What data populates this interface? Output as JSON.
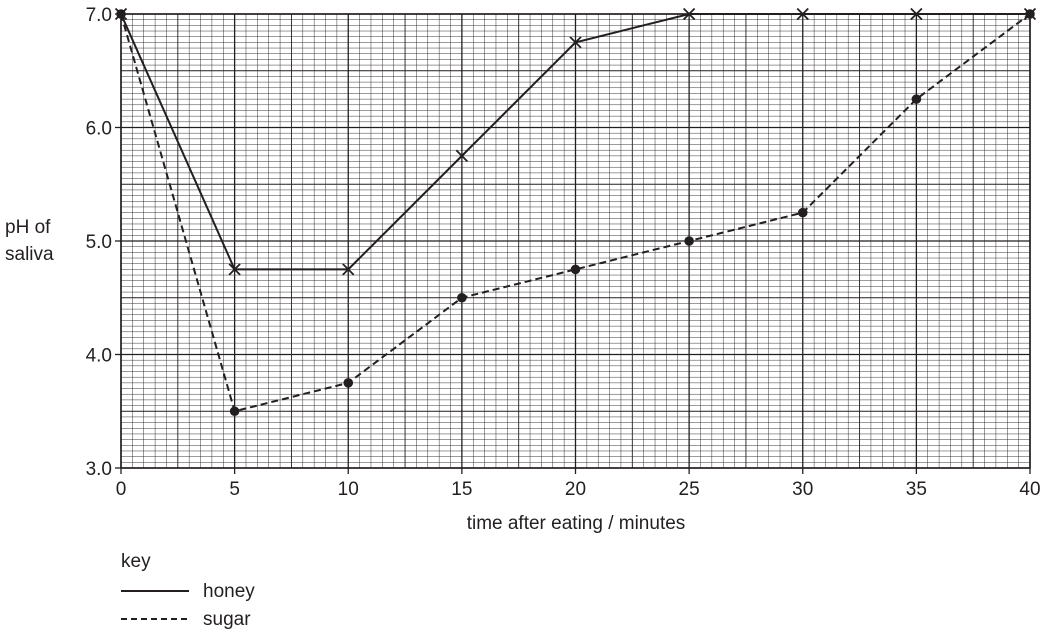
{
  "chart_data": {
    "type": "line",
    "xlabel": "time after eating / minutes",
    "ylabel": [
      "pH of",
      "saliva"
    ],
    "xlim": [
      0,
      40
    ],
    "ylim": [
      3.0,
      7.0
    ],
    "x_ticks": [
      "0",
      "5",
      "10",
      "15",
      "20",
      "25",
      "30",
      "35",
      "40"
    ],
    "y_ticks": [
      "3.0",
      "4.0",
      "5.0",
      "6.0",
      "7.0"
    ],
    "grid": true,
    "x": [
      0,
      5,
      10,
      15,
      20,
      25,
      30,
      35,
      40
    ],
    "series": [
      {
        "name": "honey",
        "style": "solid",
        "marker": "cross",
        "values": [
          7.0,
          4.75,
          4.75,
          5.75,
          6.75,
          7.0,
          7.0,
          7.0,
          7.0
        ]
      },
      {
        "name": "sugar",
        "style": "dashed",
        "marker": "dot",
        "values": [
          7.0,
          3.5,
          3.75,
          4.5,
          4.75,
          5.0,
          5.25,
          6.25,
          7.0
        ]
      }
    ],
    "legend": {
      "title": "key",
      "position": "bottom-left"
    },
    "colors": {
      "ink": "#231f20",
      "grid": "#231f20"
    }
  }
}
